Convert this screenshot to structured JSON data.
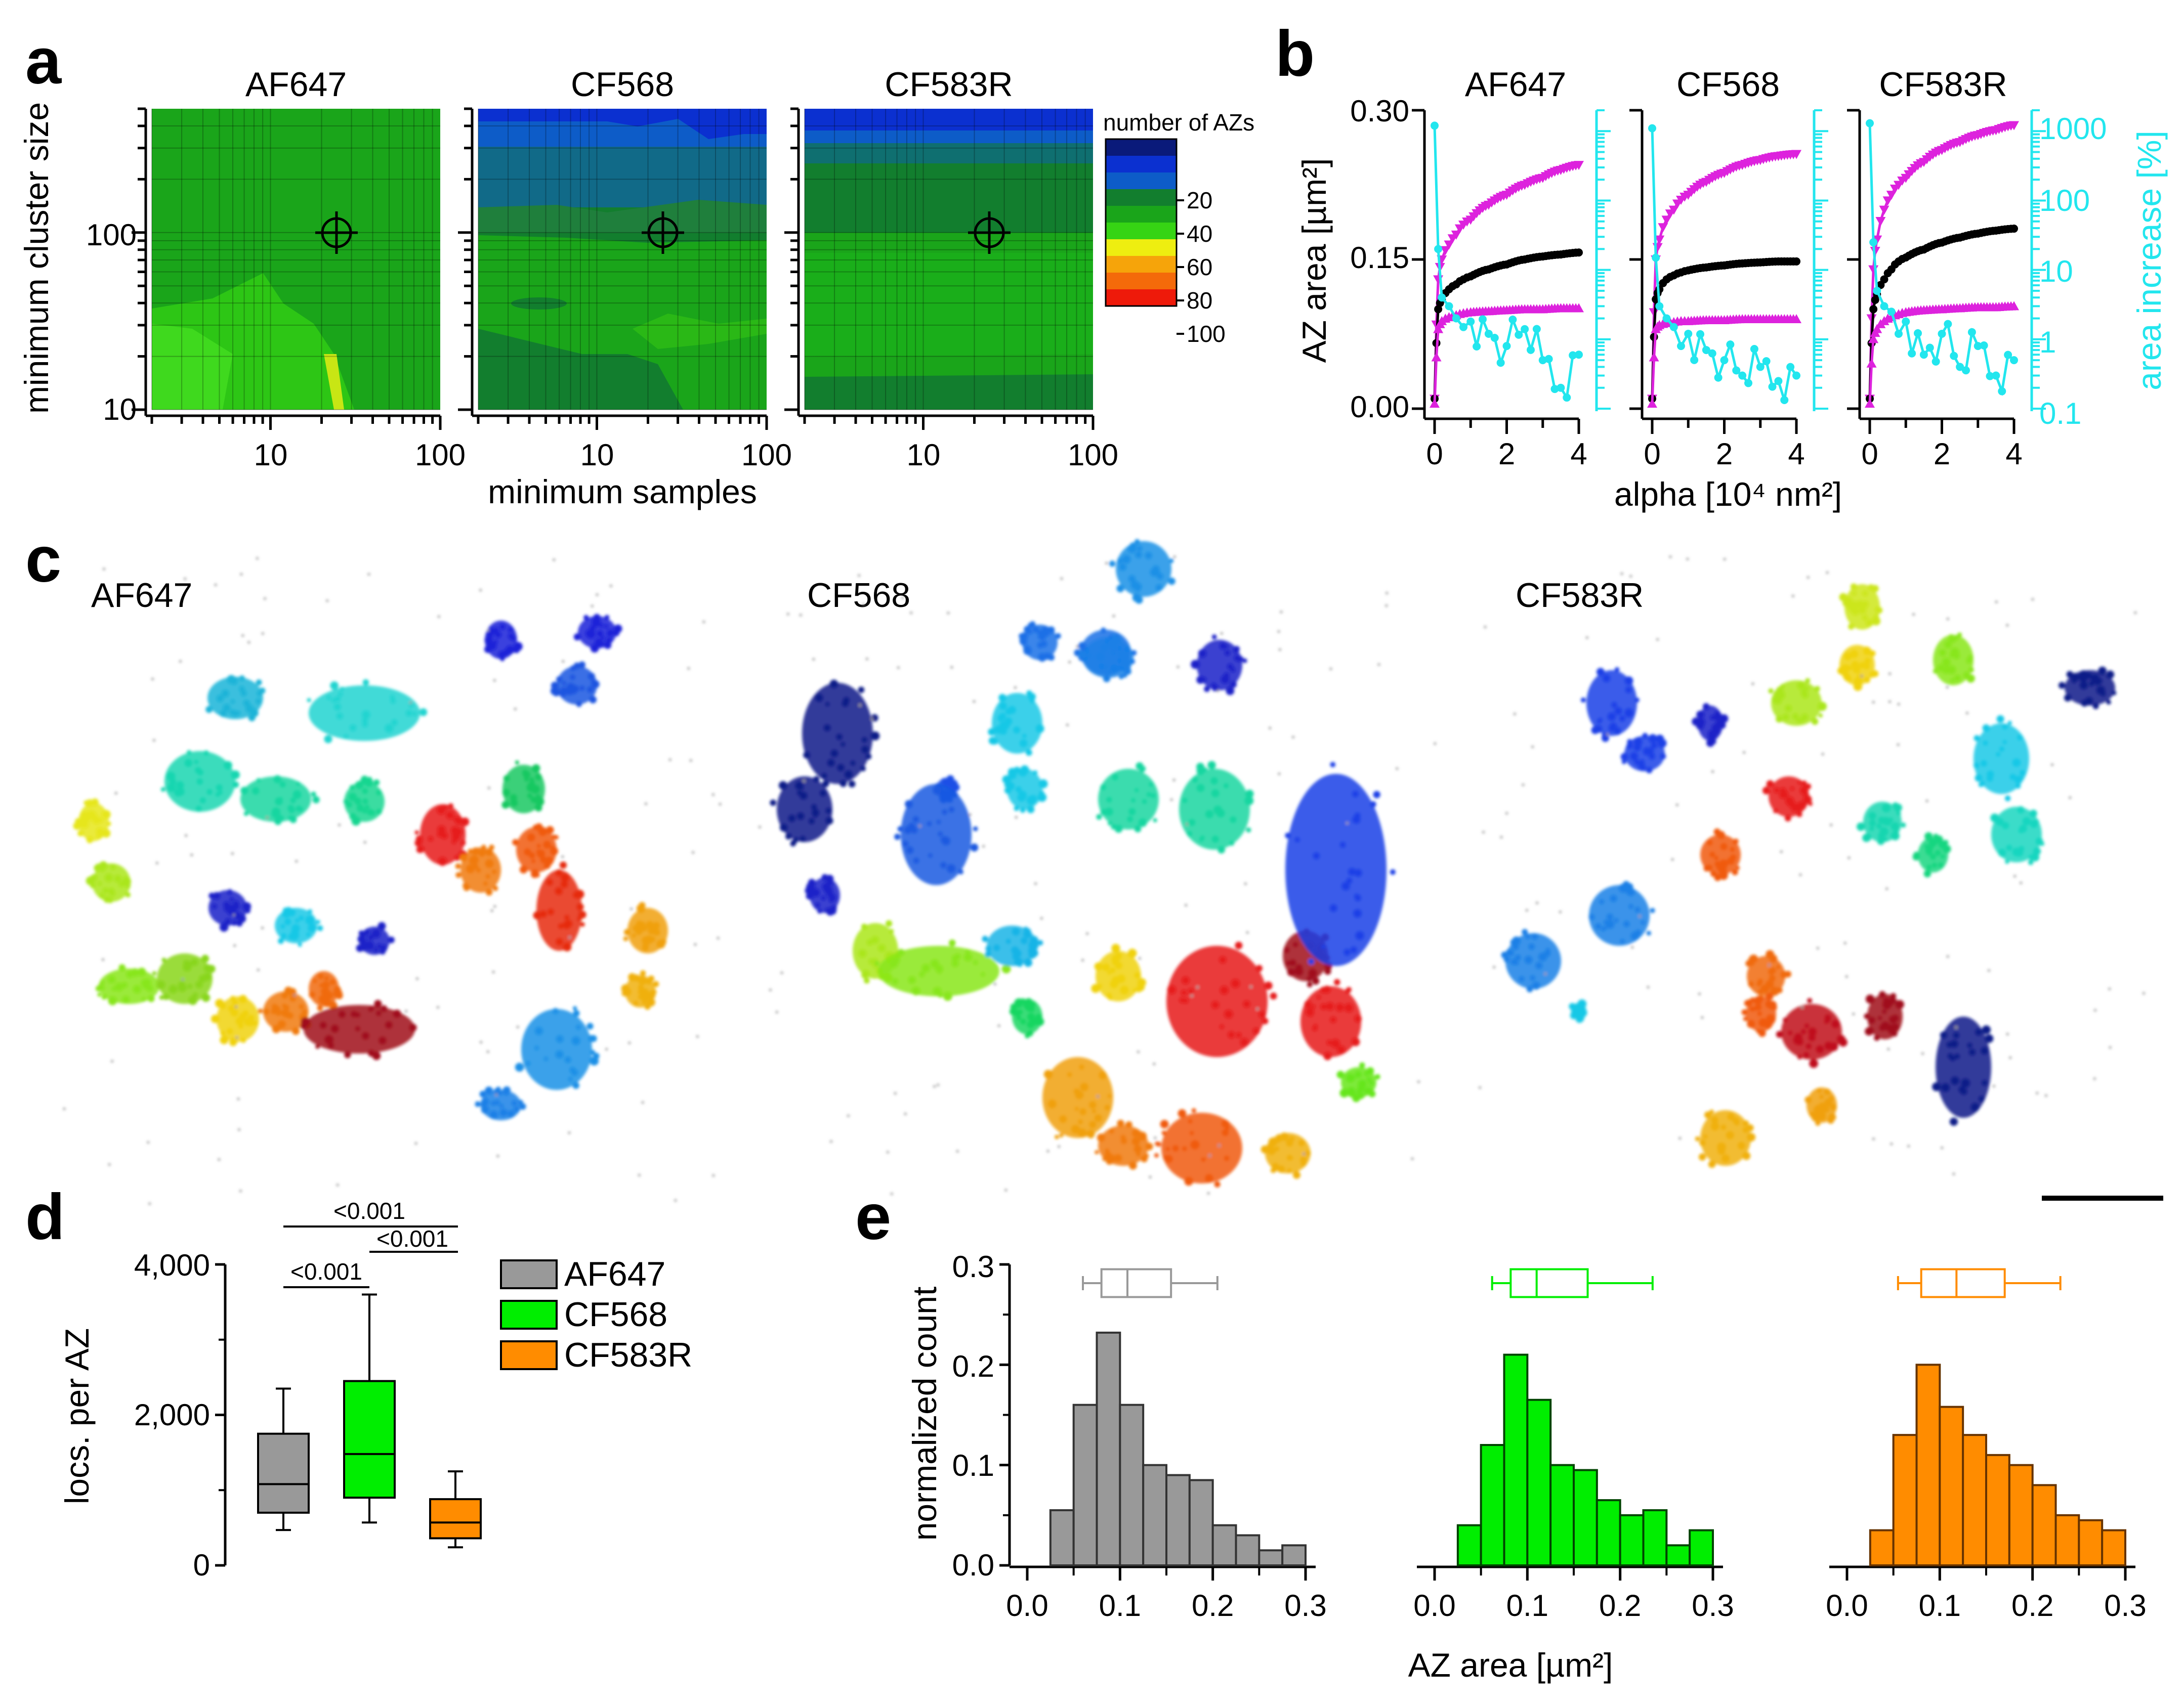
{
  "panels": {
    "a": {
      "letter": "a",
      "titles": [
        "AF647",
        "CF568",
        "CF583R"
      ],
      "ylabel": "minimum cluster size",
      "xlabel": "minimum samples",
      "yticks": [
        "100",
        "10"
      ],
      "xticks": [
        "10",
        "100"
      ],
      "colorbar": {
        "title": "number of AZs",
        "ticks": [
          "20",
          "40",
          "60",
          "80",
          "100"
        ],
        "colors": [
          "#0a1a7a",
          "#0b30d0",
          "#0d5cc8",
          "#127e2e",
          "#1aa51a",
          "#36d414",
          "#eeee10",
          "#f6a40a",
          "#f46a0a",
          "#ee1a0a"
        ]
      }
    },
    "b": {
      "letter": "b",
      "titles": [
        "AF647",
        "CF568",
        "CF583R"
      ],
      "ylabel": "AZ area [µm²]",
      "y2label": "area increase [%]",
      "xlabel": "alpha [10⁴ nm²]",
      "yticks": [
        "0.30",
        "0.15",
        "0.00"
      ],
      "y2ticks": [
        "1000",
        "100",
        "10",
        "1",
        "0.1"
      ],
      "xticks": [
        "0",
        "2",
        "4"
      ],
      "colors": {
        "upper": "#dd22dd",
        "median": "#000000",
        "lower": "#dd22dd",
        "increase": "#22e6ee"
      }
    },
    "c": {
      "letter": "c",
      "titles": [
        "AF647",
        "CF568",
        "CF583R"
      ]
    },
    "d": {
      "letter": "d",
      "ylabel": "locs. per AZ",
      "yticks": [
        "4,000",
        "2,000",
        "0"
      ],
      "pvalues": [
        "<0.001",
        "<0.001",
        "<0.001"
      ],
      "legend": [
        "AF647",
        "CF568",
        "CF583R"
      ]
    },
    "e": {
      "letter": "e",
      "ylabel": "normalized count",
      "xlabel": "AZ area [µm²]",
      "yticks": [
        "0.3",
        "0.2",
        "0.1",
        "0.0"
      ],
      "xticks": [
        "0.0",
        "0.1",
        "0.2",
        "0.3"
      ]
    }
  },
  "chart_data": [
    {
      "type": "box",
      "panel": "d",
      "ylabel": "locs. per AZ",
      "ylim": [
        0,
        4000
      ],
      "series": [
        {
          "name": "AF647",
          "color": "#999999",
          "whisker_low": 470,
          "q1": 700,
          "median": 1080,
          "q3": 1750,
          "whisker_high": 2350
        },
        {
          "name": "CF568",
          "color": "#00ee00",
          "whisker_low": 570,
          "q1": 900,
          "median": 1480,
          "q3": 2450,
          "whisker_high": 3600
        },
        {
          "name": "CF583R",
          "color": "#ff8c00",
          "whisker_low": 240,
          "q1": 360,
          "median": 570,
          "q3": 880,
          "whisker_high": 1250
        }
      ]
    },
    {
      "type": "bar",
      "panel": "e",
      "xlabel": "AZ area [µm²]",
      "ylabel": "normalized count",
      "xlim": [
        0,
        0.3
      ],
      "ylim": [
        0,
        0.3
      ],
      "bin_edges": [
        0.025,
        0.05,
        0.075,
        0.1,
        0.125,
        0.15,
        0.175,
        0.2,
        0.225,
        0.25,
        0.275,
        0.3
      ],
      "series": [
        {
          "name": "AF647",
          "color": "#999999",
          "edge": "#333333",
          "values": [
            0.055,
            0.16,
            0.232,
            0.16,
            0.1,
            0.09,
            0.085,
            0.04,
            0.03,
            0.015,
            0.02
          ],
          "box": {
            "wlo": 0.06,
            "q1": 0.08,
            "median": 0.108,
            "q3": 0.155,
            "whi": 0.205
          }
        },
        {
          "name": "CF568",
          "color": "#00ee00",
          "edge": "#004400",
          "values": [
            0.04,
            0.12,
            0.21,
            0.165,
            0.1,
            0.095,
            0.065,
            0.05,
            0.055,
            0.02,
            0.035
          ],
          "box": {
            "wlo": 0.062,
            "q1": 0.082,
            "median": 0.11,
            "q3": 0.165,
            "whi": 0.235
          }
        },
        {
          "name": "CF583R",
          "color": "#ff8c00",
          "edge": "#663300",
          "values": [
            0.035,
            0.13,
            0.2,
            0.158,
            0.13,
            0.11,
            0.1,
            0.08,
            0.05,
            0.045,
            0.035
          ],
          "box": {
            "wlo": 0.055,
            "q1": 0.08,
            "median": 0.118,
            "q3": 0.17,
            "whi": 0.23
          }
        }
      ]
    },
    {
      "type": "line",
      "panel": "b",
      "xlabel": "alpha [10⁴ nm²]",
      "ylabel": "AZ area [µm²]",
      "y2label": "area increase [%]",
      "xlim": [
        0,
        4
      ],
      "ylim": [
        0,
        0.3
      ],
      "y2lim_log": [
        0.1,
        2000
      ],
      "x": [
        0,
        0.1,
        0.2,
        0.4,
        0.6,
        0.8,
        1.0,
        1.5,
        2.0,
        2.5,
        3.0,
        3.5,
        4.0
      ],
      "groups": [
        {
          "title": "AF647",
          "upper": [
            0.01,
            0.13,
            0.15,
            0.165,
            0.175,
            0.185,
            0.19,
            0.205,
            0.215,
            0.225,
            0.232,
            0.24,
            0.245
          ],
          "median": [
            0.01,
            0.1,
            0.11,
            0.12,
            0.125,
            0.13,
            0.133,
            0.14,
            0.145,
            0.15,
            0.153,
            0.155,
            0.157
          ],
          "lower": [
            0.005,
            0.08,
            0.088,
            0.092,
            0.094,
            0.096,
            0.097,
            0.098,
            0.099,
            0.1,
            0.1,
            0.101,
            0.101
          ],
          "increase": [
            1200,
            20,
            4,
            3,
            2,
            1.5,
            1.8,
            1.2,
            0.8,
            1.4,
            0.5,
            0.2,
            0.6
          ]
        },
        {
          "title": "CF568",
          "upper": [
            0.01,
            0.15,
            0.17,
            0.19,
            0.2,
            0.21,
            0.215,
            0.228,
            0.237,
            0.245,
            0.25,
            0.254,
            0.256
          ],
          "median": [
            0.01,
            0.11,
            0.12,
            0.13,
            0.134,
            0.137,
            0.139,
            0.142,
            0.144,
            0.146,
            0.147,
            0.148,
            0.148
          ],
          "lower": [
            0.005,
            0.08,
            0.084,
            0.086,
            0.087,
            0.088,
            0.088,
            0.089,
            0.089,
            0.09,
            0.09,
            0.09,
            0.09
          ],
          "increase": [
            1100,
            15,
            3,
            2,
            1.5,
            0.8,
            1.2,
            0.7,
            0.5,
            0.3,
            0.4,
            0.25,
            0.3
          ]
        },
        {
          "title": "CF583R",
          "upper": [
            0.01,
            0.14,
            0.17,
            0.2,
            0.215,
            0.225,
            0.232,
            0.248,
            0.26,
            0.268,
            0.275,
            0.28,
            0.285
          ],
          "median": [
            0.01,
            0.1,
            0.115,
            0.13,
            0.14,
            0.148,
            0.152,
            0.16,
            0.167,
            0.172,
            0.176,
            0.179,
            0.181
          ],
          "lower": [
            0.005,
            0.07,
            0.08,
            0.088,
            0.092,
            0.095,
            0.097,
            0.099,
            0.1,
            0.101,
            0.102,
            0.102,
            0.103
          ],
          "increase": [
            1300,
            25,
            5,
            3,
            2.5,
            1.2,
            1.8,
            0.6,
            1.2,
            0.4,
            0.8,
            0.3,
            0.5
          ]
        }
      ]
    }
  ]
}
